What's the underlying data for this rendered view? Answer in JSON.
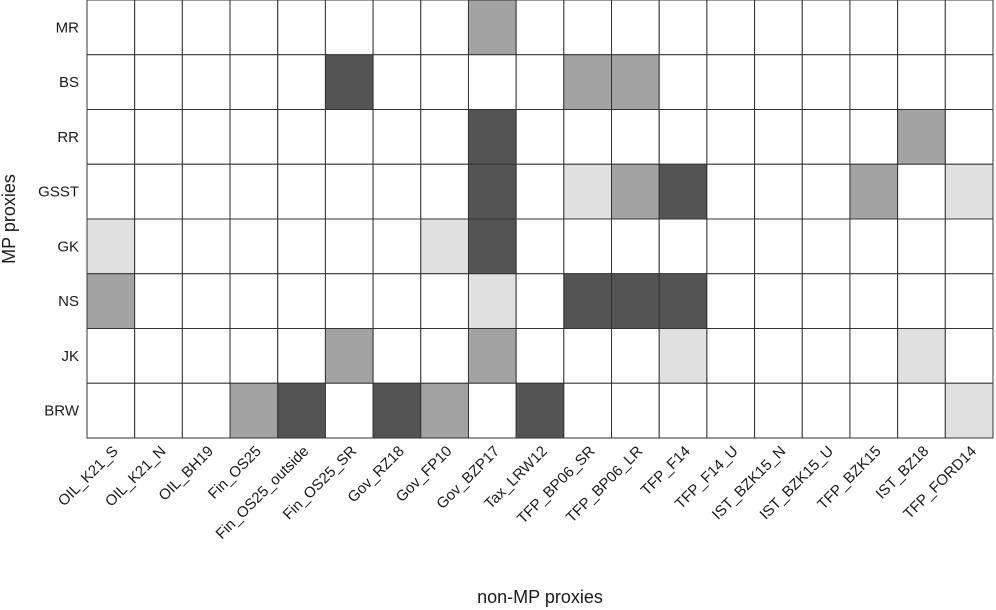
{
  "chart_data": {
    "type": "heatmap",
    "title": "",
    "xlabel": "non-MP proxies",
    "ylabel": "MP proxies",
    "rows": [
      "MR",
      "BS",
      "RR",
      "GSST",
      "GK",
      "NS",
      "JK",
      "BRW"
    ],
    "columns": [
      "OIL_K21_S",
      "OIL_K21_N",
      "OIL_BH19",
      "Fin_OS25",
      "Fin_OS25_outside",
      "Fin_OS25_SR",
      "Gov_RZ18",
      "Gov_FP10",
      "Gov_BZP17",
      "Tax_LRW12",
      "TFP_BP06_SR",
      "TFP_BP06_LR",
      "TFP_F14",
      "TFP_F14_U",
      "IST_BZK15_N",
      "IST_BZK15_U",
      "TFP_BZK15",
      "IST_BZ18",
      "TFP_FORD14"
    ],
    "levels": {
      "0": "#ffffff",
      "1": "#e0e0e0",
      "2": "#a3a3a3",
      "3": "#545454"
    },
    "values": [
      [
        0,
        0,
        0,
        0,
        0,
        0,
        0,
        0,
        2,
        0,
        0,
        0,
        0,
        0,
        0,
        0,
        0,
        0,
        0
      ],
      [
        0,
        0,
        0,
        0,
        0,
        3,
        0,
        0,
        0,
        0,
        2,
        2,
        0,
        0,
        0,
        0,
        0,
        0,
        0
      ],
      [
        0,
        0,
        0,
        0,
        0,
        0,
        0,
        0,
        3,
        0,
        0,
        0,
        0,
        0,
        0,
        0,
        0,
        2,
        0
      ],
      [
        0,
        0,
        0,
        0,
        0,
        0,
        0,
        0,
        3,
        0,
        1,
        2,
        3,
        0,
        0,
        0,
        2,
        0,
        1
      ],
      [
        1,
        0,
        0,
        0,
        0,
        0,
        0,
        1,
        3,
        0,
        0,
        0,
        0,
        0,
        0,
        0,
        0,
        0,
        0
      ],
      [
        2,
        0,
        0,
        0,
        0,
        0,
        0,
        0,
        1,
        0,
        3,
        3,
        3,
        0,
        0,
        0,
        0,
        0,
        0
      ],
      [
        0,
        0,
        0,
        0,
        0,
        2,
        0,
        0,
        2,
        0,
        0,
        0,
        1,
        0,
        0,
        0,
        0,
        1,
        0
      ],
      [
        0,
        0,
        0,
        2,
        3,
        0,
        3,
        2,
        0,
        3,
        0,
        0,
        0,
        0,
        0,
        0,
        0,
        0,
        1
      ]
    ],
    "grid": true,
    "legend": "none"
  }
}
